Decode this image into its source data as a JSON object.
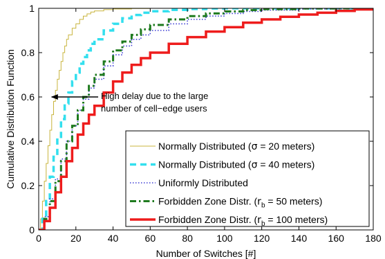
{
  "chart_data": {
    "type": "line",
    "xlabel": "Number of Switches [#]",
    "ylabel": "Cumulative Distribution Function",
    "xlim": [
      0,
      180
    ],
    "ylim": [
      0,
      1
    ],
    "xticks": [
      "0",
      "20",
      "40",
      "60",
      "80",
      "100",
      "120",
      "140",
      "160",
      "180"
    ],
    "yticks": [
      "0",
      "0.2",
      "0.4",
      "0.6",
      "0.8",
      "1"
    ],
    "grid": false,
    "legend_position": "bottom-right",
    "annotation": {
      "lines": [
        "High delay due to the large",
        "number of cell−edge users"
      ],
      "arrow_from": [
        32,
        0.6
      ],
      "arrow_to": [
        7,
        0.6
      ]
    },
    "series": [
      {
        "name": "Normally Distributed (σ = 20 meters)",
        "legend_pre": "Normally Distributed (",
        "legend_sym": "σ",
        "legend_sub": "",
        "legend_post": " = 20 meters)",
        "color": "#c8b43c",
        "width": 1,
        "dash": "",
        "x": [
          0,
          1,
          2,
          3,
          4,
          5,
          6,
          7,
          8,
          9,
          10,
          11,
          12,
          13,
          14,
          15,
          16,
          18,
          20,
          22,
          24,
          26,
          28,
          30,
          35,
          40,
          50,
          60,
          70,
          180
        ],
        "y": [
          0,
          0.05,
          0.13,
          0.22,
          0.3,
          0.38,
          0.45,
          0.52,
          0.58,
          0.63,
          0.68,
          0.72,
          0.76,
          0.8,
          0.83,
          0.86,
          0.88,
          0.91,
          0.93,
          0.95,
          0.965,
          0.975,
          0.983,
          0.988,
          0.994,
          0.997,
          0.999,
          1.0,
          1.0,
          1.0
        ]
      },
      {
        "name": "Normally Distributed (σ = 40 meters)",
        "legend_pre": "Normally Distributed (",
        "legend_sym": "σ",
        "legend_sub": "",
        "legend_post": " = 40 meters)",
        "color": "#33dfee",
        "width": 3.5,
        "dash": "9,6",
        "x": [
          0,
          2,
          4,
          6,
          8,
          10,
          12,
          14,
          16,
          18,
          20,
          22,
          24,
          26,
          28,
          30,
          35,
          40,
          45,
          50,
          55,
          60,
          70,
          80,
          90,
          100,
          180
        ],
        "y": [
          0,
          0.05,
          0.13,
          0.24,
          0.33,
          0.42,
          0.5,
          0.57,
          0.62,
          0.67,
          0.71,
          0.75,
          0.78,
          0.81,
          0.84,
          0.86,
          0.9,
          0.93,
          0.955,
          0.97,
          0.98,
          0.987,
          0.993,
          0.997,
          0.999,
          1.0,
          1.0
        ]
      },
      {
        "name": "Uniformly Distributed",
        "legend_pre": "Uniformly Distributed",
        "legend_sym": "",
        "legend_sub": "",
        "legend_post": "",
        "color": "#3b3bd4",
        "width": 1.6,
        "dash": "1.5,2.5",
        "x": [
          0,
          3,
          6,
          9,
          12,
          15,
          18,
          21,
          24,
          27,
          30,
          35,
          40,
          45,
          50,
          55,
          60,
          70,
          80,
          90,
          100,
          110,
          120,
          140,
          160,
          180
        ],
        "y": [
          0,
          0.06,
          0.14,
          0.23,
          0.32,
          0.4,
          0.47,
          0.54,
          0.59,
          0.64,
          0.68,
          0.74,
          0.79,
          0.83,
          0.86,
          0.88,
          0.9,
          0.93,
          0.95,
          0.965,
          0.977,
          0.986,
          0.992,
          0.997,
          0.999,
          1.0
        ]
      },
      {
        "name": "Forbidden Zone Distr. (r_b = 50 meters)",
        "legend_pre": "Forbidden Zone Distr. (",
        "legend_sym": "r",
        "legend_sub": "b",
        "legend_post": " = 50 meters)",
        "color": "#1e7a1e",
        "width": 3,
        "dash": "9,4,2.5,4",
        "x": [
          0,
          3,
          6,
          9,
          12,
          15,
          18,
          21,
          24,
          27,
          30,
          35,
          40,
          45,
          50,
          55,
          60,
          70,
          80,
          90,
          100,
          110,
          120,
          140,
          160,
          180
        ],
        "y": [
          0,
          0.05,
          0.13,
          0.22,
          0.31,
          0.4,
          0.47,
          0.54,
          0.6,
          0.65,
          0.7,
          0.76,
          0.81,
          0.85,
          0.88,
          0.905,
          0.925,
          0.95,
          0.965,
          0.977,
          0.986,
          0.992,
          0.996,
          0.999,
          1.0,
          1.0
        ]
      },
      {
        "name": "Forbidden Zone Distr. (r_b = 100 meters)",
        "legend_pre": "Forbidden Zone Distr. (",
        "legend_sym": "r",
        "legend_sub": "b",
        "legend_post": " = 100 meters)",
        "color": "#ee1c1c",
        "width": 3.5,
        "dash": "",
        "x": [
          0,
          3,
          6,
          9,
          12,
          15,
          18,
          21,
          24,
          27,
          30,
          35,
          40,
          45,
          50,
          55,
          60,
          70,
          80,
          90,
          100,
          110,
          120,
          130,
          140,
          150,
          160,
          170,
          180
        ],
        "y": [
          0,
          0.04,
          0.1,
          0.17,
          0.24,
          0.31,
          0.37,
          0.43,
          0.48,
          0.52,
          0.56,
          0.62,
          0.67,
          0.71,
          0.745,
          0.775,
          0.8,
          0.84,
          0.87,
          0.895,
          0.915,
          0.935,
          0.95,
          0.962,
          0.972,
          0.98,
          0.988,
          0.995,
          1.0
        ]
      }
    ]
  }
}
